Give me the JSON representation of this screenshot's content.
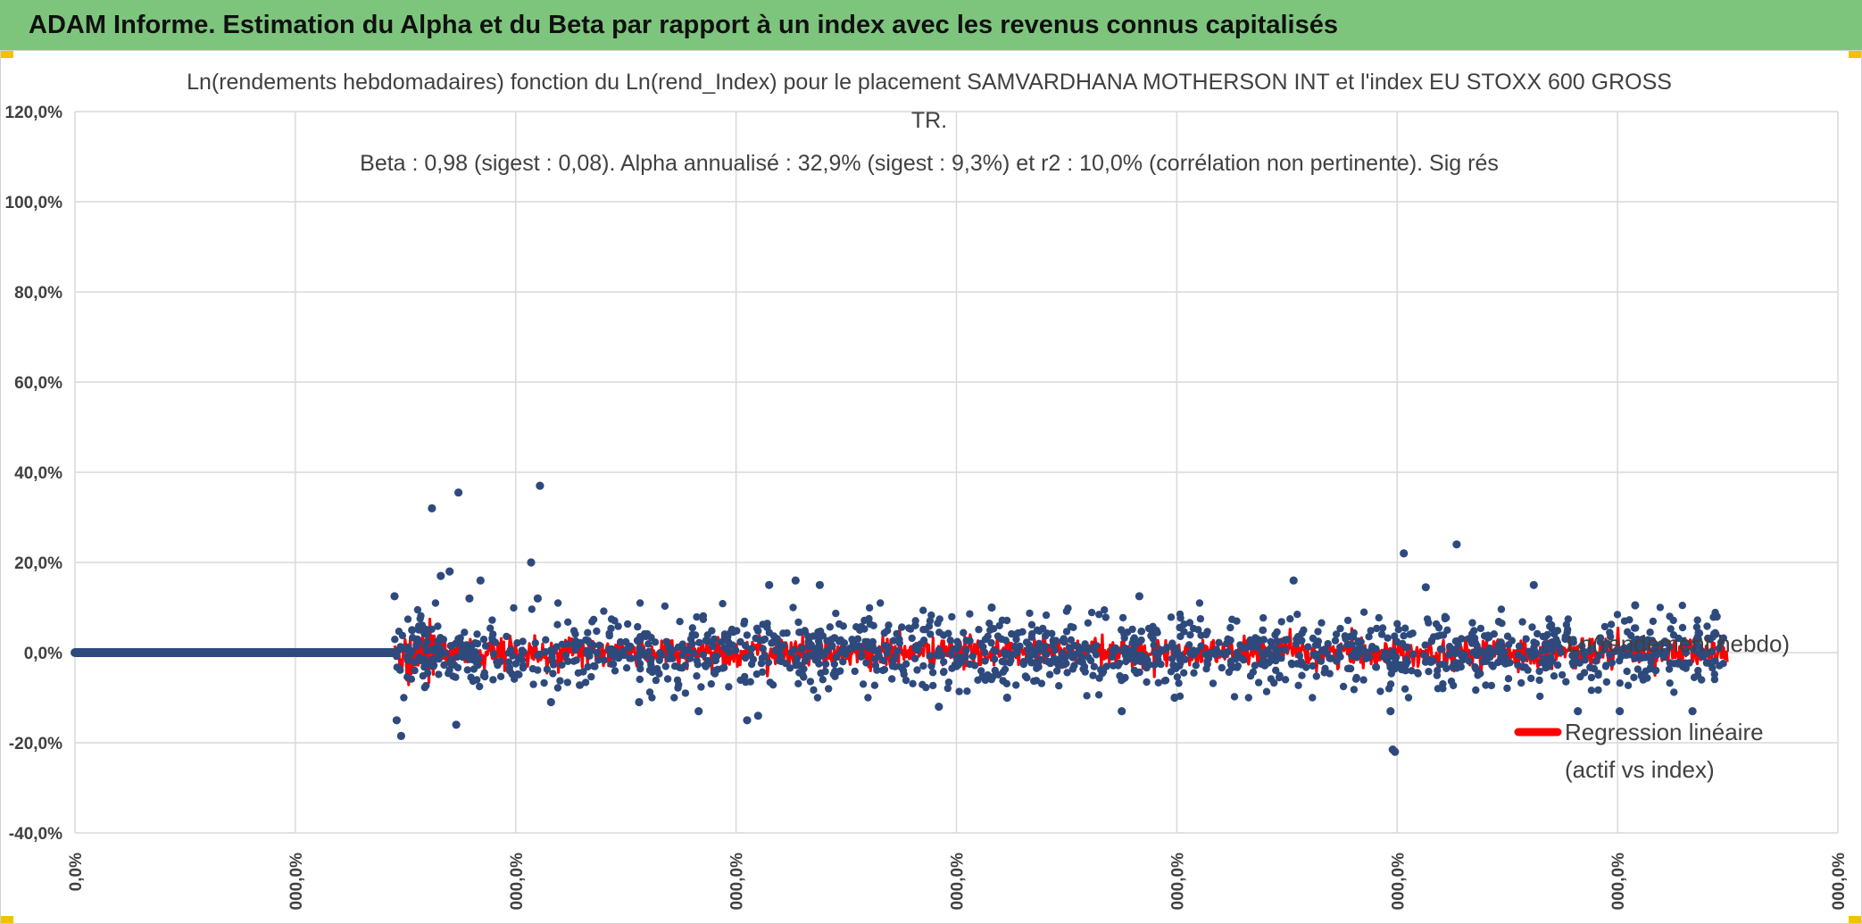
{
  "banner": {
    "title": "ADAM Informe. Estimation du Alpha et du Beta par rapport à un index avec les revenus connus capitalisés",
    "color": "#7dc57d"
  },
  "chart_data": {
    "type": "scatter",
    "title_lines": [
      "Ln(rendements hebdomadaires) fonction du Ln(rend_Index) pour le placement SAMVARDHANA MOTHERSON INT et l'index EU STOXX 600 GROSS",
      "TR.",
      "Beta : 0,98 (sigest : 0,08). Alpha annualisé : 32,9% (sigest : 9,3%) et r2 : 10,0% (corrélation non pertinente). Sig rés"
    ],
    "ylim": [
      -40,
      120
    ],
    "y_ticks": [
      "-40,0%",
      "-20,0%",
      "0,0%",
      "20,0%",
      "40,0%",
      "60,0%",
      "80,0%",
      "100,0%",
      "120,0%"
    ],
    "x_ticks": [
      "0,0%",
      "000,0%",
      "000,0%",
      "000,0%",
      "000,0%",
      "000,0%",
      "000,0%",
      "000,0%",
      "000,0%"
    ],
    "grid": true,
    "legend_position": "right",
    "series": [
      {
        "name": "Ln(rendement hebdo)",
        "color": "#2e4a7d",
        "flat_segment": {
          "x_start": 0,
          "x_end": 1450,
          "y": 0
        },
        "noise_range_x": [
          1450,
          7500
        ],
        "typical_spread_pct": 4,
        "outliers": [
          {
            "x": 1450,
            "y": 12.5
          },
          {
            "x": 1460,
            "y": -15
          },
          {
            "x": 1480,
            "y": -18.5
          },
          {
            "x": 1530,
            "y": 5
          },
          {
            "x": 1620,
            "y": 32
          },
          {
            "x": 1660,
            "y": 17
          },
          {
            "x": 1700,
            "y": 18
          },
          {
            "x": 1730,
            "y": -16
          },
          {
            "x": 1740,
            "y": 35.5
          },
          {
            "x": 1790,
            "y": 12
          },
          {
            "x": 1840,
            "y": 16
          },
          {
            "x": 2070,
            "y": 20
          },
          {
            "x": 2110,
            "y": 37
          },
          {
            "x": 2100,
            "y": 12
          },
          {
            "x": 2160,
            "y": -11
          },
          {
            "x": 2560,
            "y": -11
          },
          {
            "x": 2830,
            "y": -13
          },
          {
            "x": 3050,
            "y": -15
          },
          {
            "x": 3100,
            "y": -14
          },
          {
            "x": 3150,
            "y": 15
          },
          {
            "x": 3270,
            "y": 16
          },
          {
            "x": 3380,
            "y": 15
          },
          {
            "x": 3920,
            "y": -12
          },
          {
            "x": 4160,
            "y": 10
          },
          {
            "x": 4230,
            "y": -10
          },
          {
            "x": 4750,
            "y": -13
          },
          {
            "x": 4830,
            "y": 12.5
          },
          {
            "x": 4990,
            "y": -10
          },
          {
            "x": 5530,
            "y": 16
          },
          {
            "x": 5970,
            "y": -13
          },
          {
            "x": 5980,
            "y": -21.5
          },
          {
            "x": 5990,
            "y": -22
          },
          {
            "x": 6030,
            "y": 22
          },
          {
            "x": 6130,
            "y": 14.5
          },
          {
            "x": 6270,
            "y": 24
          },
          {
            "x": 6620,
            "y": 15
          },
          {
            "x": 6820,
            "y": -13
          },
          {
            "x": 7010,
            "y": -13
          },
          {
            "x": 7080,
            "y": 10.5
          },
          {
            "x": 7340,
            "y": -13
          },
          {
            "x": 7450,
            "y": 8
          }
        ]
      },
      {
        "name": "Regression linéaire (actif vs index)",
        "color": "#ff0000"
      }
    ],
    "legend": [
      {
        "label": "Ln(rendement hebdo)",
        "color": "#2e4a7d"
      },
      {
        "label_lines": [
          "Regression linéaire",
          "(actif vs index)"
        ],
        "color": "#ff0000"
      }
    ]
  }
}
